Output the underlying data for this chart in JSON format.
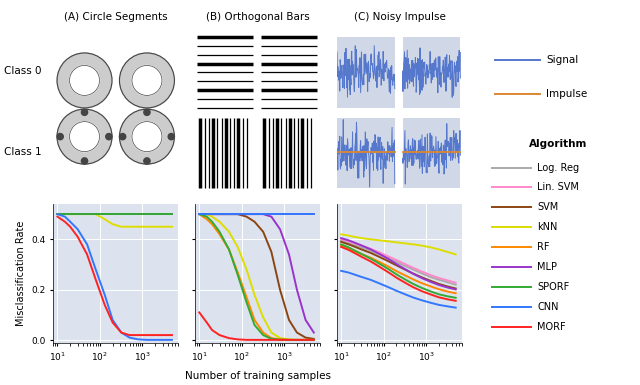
{
  "title_A": "(A) Circle Segments",
  "title_B": "(B) Orthogonal Bars",
  "title_C": "(C) Noisy Impulse",
  "xlabel": "Number of training samples",
  "ylabel": "Misclassification Rate",
  "background_color": "#dde3ee",
  "signal_bg": "#d0d8e8",
  "legend_bg": "#eeeeee",
  "signal_color": "#5577cc",
  "impulse_color": "#dd8833",
  "algorithms": [
    "Log. Reg",
    "Lin. SVM",
    "SVM",
    "kNN",
    "RF",
    "MLP",
    "SPORF",
    "CNN",
    "MORF"
  ],
  "algo_colors": [
    "#aaaaaa",
    "#ff88cc",
    "#8B4513",
    "#dddd00",
    "#ff8800",
    "#9933cc",
    "#33aa33",
    "#3377ff",
    "#ff2222"
  ],
  "panel_A_x": [
    10,
    15,
    20,
    30,
    50,
    80,
    130,
    200,
    320,
    500,
    800,
    1300,
    2000,
    3200,
    5000
  ],
  "panel_A": {
    "Log. Reg": [
      0.5,
      0.5,
      0.5,
      0.5,
      0.5,
      0.5,
      0.5,
      0.5,
      0.5,
      0.5,
      0.5,
      0.5,
      0.5,
      0.5,
      0.5
    ],
    "Lin. SVM": [
      0.5,
      0.5,
      0.5,
      0.5,
      0.5,
      0.5,
      0.5,
      0.5,
      0.5,
      0.5,
      0.5,
      0.5,
      0.5,
      0.5,
      0.5
    ],
    "SVM": [
      0.5,
      0.5,
      0.5,
      0.5,
      0.5,
      0.5,
      0.5,
      0.5,
      0.5,
      0.5,
      0.5,
      0.5,
      0.5,
      0.5,
      0.5
    ],
    "kNN": [
      0.5,
      0.5,
      0.5,
      0.5,
      0.5,
      0.5,
      0.48,
      0.46,
      0.45,
      0.45,
      0.45,
      0.45,
      0.45,
      0.45,
      0.45
    ],
    "RF": [
      0.5,
      0.5,
      0.5,
      0.5,
      0.5,
      0.5,
      0.5,
      0.5,
      0.5,
      0.5,
      0.5,
      0.5,
      0.5,
      0.5,
      0.5
    ],
    "MLP": [
      0.5,
      0.5,
      0.5,
      0.5,
      0.5,
      0.5,
      0.5,
      0.5,
      0.5,
      0.5,
      0.5,
      0.5,
      0.5,
      0.5,
      0.5
    ],
    "SPORF": [
      0.5,
      0.5,
      0.5,
      0.5,
      0.5,
      0.5,
      0.5,
      0.5,
      0.5,
      0.5,
      0.5,
      0.5,
      0.5,
      0.5,
      0.5
    ],
    "CNN": [
      0.5,
      0.49,
      0.47,
      0.44,
      0.38,
      0.28,
      0.18,
      0.08,
      0.03,
      0.01,
      0.003,
      0.001,
      0.001,
      0.001,
      0.001
    ],
    "MORF": [
      0.49,
      0.47,
      0.45,
      0.41,
      0.34,
      0.24,
      0.14,
      0.07,
      0.03,
      0.02,
      0.02,
      0.02,
      0.02,
      0.02,
      0.02
    ]
  },
  "panel_B_x": [
    10,
    15,
    20,
    30,
    50,
    80,
    130,
    200,
    320,
    500,
    800,
    1300,
    2000,
    3200,
    5000
  ],
  "panel_B": {
    "Log. Reg": [
      0.5,
      0.5,
      0.5,
      0.5,
      0.5,
      0.5,
      0.5,
      0.5,
      0.5,
      0.5,
      0.5,
      0.5,
      0.5,
      0.5,
      0.5
    ],
    "Lin. SVM": [
      0.5,
      0.5,
      0.5,
      0.5,
      0.5,
      0.5,
      0.5,
      0.5,
      0.5,
      0.5,
      0.5,
      0.5,
      0.5,
      0.5,
      0.5
    ],
    "SVM": [
      0.5,
      0.5,
      0.5,
      0.5,
      0.5,
      0.5,
      0.49,
      0.47,
      0.43,
      0.35,
      0.2,
      0.08,
      0.03,
      0.01,
      0.005
    ],
    "kNN": [
      0.5,
      0.5,
      0.49,
      0.47,
      0.43,
      0.37,
      0.28,
      0.18,
      0.09,
      0.03,
      0.008,
      0.003,
      0.001,
      0.001,
      0.001
    ],
    "RF": [
      0.5,
      0.48,
      0.46,
      0.42,
      0.36,
      0.27,
      0.17,
      0.08,
      0.03,
      0.008,
      0.003,
      0.001,
      0.001,
      0.001,
      0.001
    ],
    "MLP": [
      0.5,
      0.5,
      0.5,
      0.5,
      0.5,
      0.5,
      0.5,
      0.5,
      0.5,
      0.49,
      0.44,
      0.34,
      0.2,
      0.08,
      0.03
    ],
    "SPORF": [
      0.5,
      0.49,
      0.47,
      0.43,
      0.36,
      0.26,
      0.15,
      0.06,
      0.02,
      0.005,
      0.002,
      0.001,
      0.001,
      0.001,
      0.001
    ],
    "CNN": [
      0.5,
      0.5,
      0.5,
      0.5,
      0.5,
      0.5,
      0.5,
      0.5,
      0.5,
      0.5,
      0.5,
      0.5,
      0.5,
      0.5,
      0.5
    ],
    "MORF": [
      0.11,
      0.07,
      0.04,
      0.02,
      0.008,
      0.003,
      0.001,
      0.001,
      0.001,
      0.001,
      0.001,
      0.001,
      0.001,
      0.001,
      0.001
    ]
  },
  "panel_C_x": [
    10,
    15,
    20,
    30,
    50,
    80,
    130,
    200,
    320,
    500,
    800,
    1300,
    2000,
    3200,
    5000
  ],
  "panel_C": {
    "Log. Reg": [
      0.395,
      0.385,
      0.378,
      0.368,
      0.355,
      0.34,
      0.325,
      0.31,
      0.295,
      0.28,
      0.265,
      0.25,
      0.24,
      0.23,
      0.22
    ],
    "Lin. SVM": [
      0.4,
      0.392,
      0.385,
      0.375,
      0.362,
      0.348,
      0.332,
      0.318,
      0.302,
      0.287,
      0.272,
      0.258,
      0.247,
      0.237,
      0.228
    ],
    "SVM": [
      0.39,
      0.38,
      0.372,
      0.36,
      0.346,
      0.33,
      0.313,
      0.297,
      0.28,
      0.264,
      0.249,
      0.235,
      0.223,
      0.213,
      0.205
    ],
    "kNN": [
      0.42,
      0.415,
      0.41,
      0.405,
      0.4,
      0.396,
      0.392,
      0.388,
      0.384,
      0.38,
      0.375,
      0.368,
      0.36,
      0.35,
      0.34
    ],
    "RF": [
      0.375,
      0.365,
      0.355,
      0.342,
      0.327,
      0.31,
      0.292,
      0.274,
      0.257,
      0.241,
      0.226,
      0.213,
      0.202,
      0.193,
      0.186
    ],
    "MLP": [
      0.405,
      0.396,
      0.388,
      0.376,
      0.36,
      0.342,
      0.322,
      0.302,
      0.282,
      0.263,
      0.246,
      0.231,
      0.219,
      0.209,
      0.201
    ],
    "SPORF": [
      0.38,
      0.368,
      0.357,
      0.342,
      0.323,
      0.303,
      0.282,
      0.261,
      0.241,
      0.223,
      0.207,
      0.193,
      0.182,
      0.174,
      0.168
    ],
    "CNN": [
      0.275,
      0.268,
      0.261,
      0.251,
      0.239,
      0.225,
      0.21,
      0.196,
      0.182,
      0.169,
      0.158,
      0.148,
      0.14,
      0.134,
      0.129
    ],
    "MORF": [
      0.37,
      0.358,
      0.347,
      0.331,
      0.312,
      0.291,
      0.269,
      0.248,
      0.228,
      0.21,
      0.194,
      0.181,
      0.17,
      0.162,
      0.156
    ]
  }
}
